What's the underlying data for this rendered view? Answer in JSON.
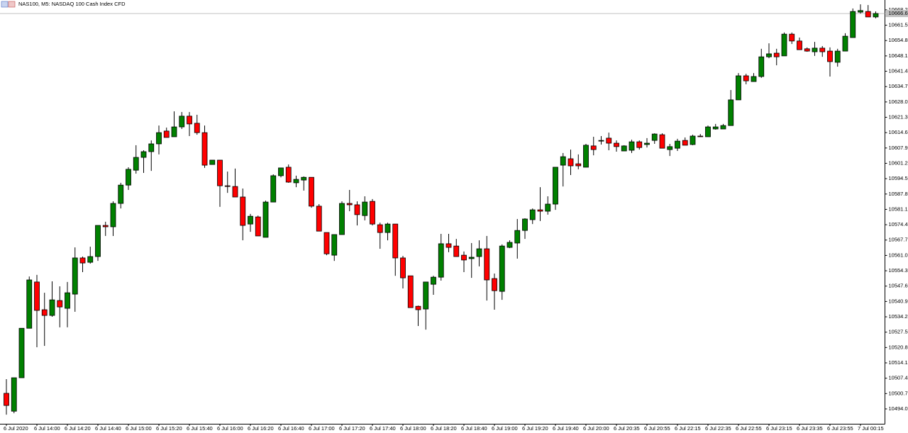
{
  "chart_data": {
    "type": "candlestick",
    "title": "NAS100, M5:  NASDAQ 100 Cash Index CFD",
    "bull_color": "#008000",
    "bear_color": "#ff0000",
    "ylim": [
      10487.5,
      10672.5
    ],
    "yticks": [
      {
        "value": 10494,
        "label": "10494.0"
      },
      10500.7,
      10507.4,
      10514.1,
      10520.8,
      10527.5,
      10534.2,
      10540.9,
      10547.6,
      10554.3,
      {
        "value": 10561,
        "label": "10561.0"
      },
      10567.7,
      10574.4,
      10581.1,
      10587.8,
      10594.5,
      10601.2,
      10607.9,
      10614.6,
      10621.3,
      {
        "value": 10628,
        "label": "10628.0"
      },
      10634.7,
      10641.4,
      10648.1,
      10654.8,
      10661.5,
      10668.2
    ],
    "last_price": 10666.6,
    "categories": [
      "6 Jul 2020",
      null,
      null,
      null,
      "6 Jul 14:00",
      null,
      null,
      null,
      "6 Jul 14:20",
      null,
      null,
      null,
      "6 Jul 14:40",
      null,
      null,
      null,
      "6 Jul 15:00",
      null,
      null,
      null,
      "6 Jul 15:20",
      null,
      null,
      null,
      "6 Jul 15:40",
      null,
      null,
      null,
      "6 Jul 16:00",
      null,
      null,
      null,
      "6 Jul 16:20",
      null,
      null,
      null,
      "6 Jul 16:40",
      null,
      null,
      null,
      "6 Jul 17:00",
      null,
      null,
      null,
      "6 Jul 17:20",
      null,
      null,
      null,
      "6 Jul 17:40",
      null,
      null,
      null,
      "6 Jul 18:00",
      null,
      null,
      null,
      "6 Jul 18:20",
      null,
      null,
      null,
      "6 Jul 18:40",
      null,
      null,
      null,
      "6 Jul 19:00",
      null,
      null,
      null,
      "6 Jul 19:20",
      null,
      null,
      null,
      "6 Jul 19:40",
      null,
      null,
      null,
      "6 Jul 20:00",
      null,
      null,
      null,
      "6 Jul 20:35",
      null,
      null,
      null,
      "6 Jul 20:55",
      null,
      null,
      null,
      "6 Jul 22:15",
      null,
      null,
      null,
      "6 Jul 22:35",
      null,
      null,
      null,
      "6 Jul 22:55",
      null,
      null,
      null,
      "6 Jul 23:15",
      null,
      null,
      null,
      "6 Jul 23:35",
      null,
      null,
      null,
      "6 Jul 23:55",
      null,
      null,
      null,
      "7 Jul 00:15",
      null,
      null
    ],
    "open": [
      10500.8,
      10493.0,
      10507.6,
      10529.2,
      10549.4,
      10537.3,
      10534.8,
      10541.3,
      10537.9,
      10544.1,
      10559.9,
      10558.0,
      10560.5,
      10574.1,
      10573.5,
      10583.7,
      10591.7,
      10598.2,
      10603.8,
      10606.3,
      10609.7,
      10615.3,
      10612.8,
      10617.1,
      10621.8,
      10618.7,
      10614.6,
      10600.7,
      10602.6,
      10591.4,
      10591.1,
      10586.5,
      10574.7,
      10577.8,
      10568.9,
      10584.3,
      10595.8,
      10599.5,
      10592.7,
      10593.9,
      10595.1,
      10582.5,
      10571.0,
      10561.1,
      10570.1,
      10583.7,
      10583.1,
      10578.4,
      10584.6,
      10574.4,
      10571.0,
      10574.7,
      10559.9,
      10552.1,
      10538.8,
      10537.6,
      10548.4,
      10551.5,
      10566.1,
      10565.1,
      10561.1,
      10559.6,
      10560.5,
      10563.9,
      10550.9,
      10545.3,
      10564.5,
      10566.4,
      10571.9,
      10576.6,
      10580.9,
      10580.3,
      10583.4,
      10600.4,
      10603.2,
      10601.0,
      10599.5,
      10608.8,
      10610.9,
      10612.2,
      10610.0,
      10606.6,
      10606.9,
      10610.6,
      10609.4,
      10611.2,
      10613.7,
      10607.2,
      10607.8,
      10611.2,
      10609.4,
      10613.1,
      10612.8,
      10616.2,
      10616.2,
      10617.7,
      10628.9,
      10639.4,
      10636.9,
      10639.1,
      10647.7,
      10649.3,
      10648.1,
      10657.6,
      10654.6,
      10651.2,
      10649.9,
      10651.5,
      10650.2,
      10645.3,
      10650.2,
      10656.1,
      10667.2,
      10667.5,
      10665.1
    ],
    "high": [
      10507.0,
      10507.6,
      10529.2,
      10551.8,
      10552.5,
      10544.7,
      10549.7,
      10547.5,
      10549.4,
      10564.5,
      10560.5,
      10564.8,
      10574.1,
      10575.7,
      10584.6,
      10592.7,
      10599.5,
      10609.1,
      10606.9,
      10611.2,
      10617.7,
      10616.8,
      10623.9,
      10623.6,
      10623.6,
      10622.4,
      10617.7,
      10602.6,
      10602.6,
      10597.6,
      10598.9,
      10590.2,
      10579.1,
      10578.4,
      10584.9,
      10596.4,
      10599.2,
      10600.7,
      10595.8,
      10595.5,
      10595.1,
      10583.4,
      10571.0,
      10570.1,
      10584.6,
      10589.6,
      10584.6,
      10586.8,
      10585.6,
      10575.3,
      10575.3,
      10574.7,
      10560.8,
      10552.1,
      10539.1,
      10549.4,
      10552.1,
      10570.4,
      10570.4,
      10568.2,
      10562.7,
      10566.4,
      10567.6,
      10569.5,
      10553.1,
      10565.8,
      10567.6,
      10576.9,
      10577.2,
      10581.5,
      10590.8,
      10586.8,
      10599.5,
      10605.7,
      10607.2,
      10605.1,
      10609.7,
      10612.8,
      10613.1,
      10614.6,
      10611.2,
      10609.1,
      10611.5,
      10611.2,
      10612.2,
      10614.3,
      10614.3,
      10609.7,
      10611.9,
      10612.5,
      10613.7,
      10614.0,
      10617.7,
      10618.4,
      10618.4,
      10633.2,
      10640.6,
      10640.3,
      10640.6,
      10651.2,
      10653.6,
      10651.2,
      10658.3,
      10658.3,
      10656.1,
      10651.8,
      10654.2,
      10652.4,
      10651.8,
      10651.2,
      10658.0,
      10668.8,
      10670.6,
      10670.3,
      10667.5
    ],
    "low": [
      10491.5,
      10492.1,
      10507.6,
      10529.2,
      10520.9,
      10521.5,
      10534.2,
      10529.6,
      10529.6,
      10536.4,
      10553.7,
      10557.4,
      10558.6,
      10569.5,
      10569.5,
      10581.5,
      10589.6,
      10596.7,
      10597.0,
      10597.9,
      10605.1,
      10612.5,
      10612.8,
      10616.2,
      10613.1,
      10613.7,
      10599.2,
      10600.7,
      10582.2,
      10588.3,
      10586.5,
      10567.6,
      10571.3,
      10569.5,
      10568.9,
      10584.3,
      10595.1,
      10592.7,
      10590.8,
      10589.3,
      10581.8,
      10571.6,
      10561.1,
      10558.6,
      10570.1,
      10580.3,
      10574.1,
      10576.3,
      10574.1,
      10563.9,
      10567.6,
      10552.1,
      10546.6,
      10538.2,
      10530.2,
      10528.6,
      10543.8,
      10550.0,
      10562.4,
      10560.5,
      10553.7,
      10551.2,
      10556.2,
      10541.3,
      10537.3,
      10541.6,
      10564.2,
      10559.6,
      10568.2,
      10574.7,
      10576.0,
      10578.8,
      10580.9,
      10591.1,
      10596.1,
      10598.6,
      10599.5,
      10604.7,
      10609.4,
      10606.9,
      10606.3,
      10606.6,
      10605.7,
      10607.2,
      10608.1,
      10609.7,
      10607.8,
      10604.4,
      10606.6,
      10609.1,
      10609.1,
      10612.8,
      10612.8,
      10615.9,
      10616.2,
      10617.7,
      10628.9,
      10635.7,
      10636.9,
      10638.5,
      10647.1,
      10644.0,
      10648.1,
      10653.3,
      10650.8,
      10649.9,
      10648.1,
      10647.7,
      10639.1,
      10643.4,
      10650.2,
      10656.1,
      10666.6,
      10665.1,
      10664.5
    ],
    "close": [
      10495.5,
      10507.6,
      10529.2,
      10550.3,
      10537.0,
      10534.8,
      10541.6,
      10538.5,
      10544.7,
      10559.9,
      10557.7,
      10560.5,
      10574.1,
      10573.5,
      10583.7,
      10591.7,
      10598.6,
      10603.8,
      10606.3,
      10609.7,
      10614.6,
      10612.5,
      10617.1,
      10621.8,
      10618.4,
      10614.6,
      10600.4,
      10602.6,
      10591.4,
      10591.1,
      10586.5,
      10574.1,
      10578.1,
      10569.5,
      10584.3,
      10595.8,
      10599.2,
      10593.0,
      10594.2,
      10595.1,
      10582.5,
      10571.6,
      10561.7,
      10570.1,
      10583.7,
      10583.1,
      10578.8,
      10584.3,
      10574.7,
      10571.0,
      10574.7,
      10559.9,
      10551.2,
      10538.2,
      10537.3,
      10549.4,
      10551.5,
      10566.1,
      10564.5,
      10560.5,
      10559.0,
      10560.2,
      10563.9,
      10550.3,
      10545.6,
      10565.1,
      10566.7,
      10571.9,
      10576.9,
      10580.9,
      10580.3,
      10583.4,
      10599.5,
      10604.1,
      10600.1,
      10600.1,
      10609.1,
      10607.2,
      10611.2,
      10610.0,
      10608.5,
      10608.8,
      10610.6,
      10608.1,
      10610.0,
      10614.0,
      10607.8,
      10608.5,
      10610.9,
      10609.1,
      10613.1,
      10612.8,
      10617.1,
      10617.1,
      10617.7,
      10628.9,
      10639.4,
      10637.2,
      10639.1,
      10647.7,
      10649.0,
      10647.7,
      10657.6,
      10654.6,
      10650.8,
      10650.2,
      10651.5,
      10649.9,
      10645.6,
      10650.2,
      10656.7,
      10667.5,
      10667.9,
      10665.1,
      10666.6
    ]
  }
}
